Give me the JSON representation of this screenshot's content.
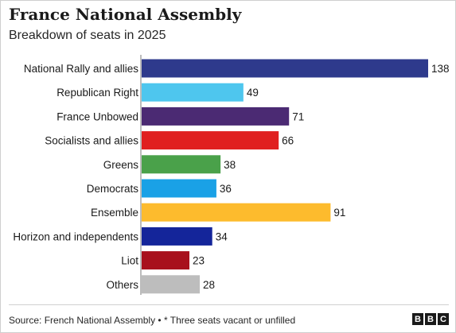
{
  "title": "France National Assembly",
  "subtitle": "Breakdown of seats in 2025",
  "source": "Source: French National Assembly • * Three seats vacant or unfilled",
  "logo": [
    "B",
    "B",
    "C"
  ],
  "chart_data": {
    "type": "bar",
    "orientation": "horizontal",
    "title": "France National Assembly",
    "subtitle": "Breakdown of seats in 2025",
    "xlabel": "",
    "ylabel": "",
    "grid": false,
    "xlim": [
      0,
      138
    ],
    "categories": [
      "National Rally and allies",
      "Republican Right",
      "France Unbowed",
      "Socialists and allies",
      "Greens",
      "Democrats",
      "Ensemble",
      "Horizon and independents",
      "Liot",
      "Others"
    ],
    "values": [
      138,
      49,
      71,
      66,
      38,
      36,
      91,
      34,
      23,
      28
    ],
    "colors": [
      "#2e3a8c",
      "#4ec6ee",
      "#4b2a73",
      "#e02020",
      "#4aa14a",
      "#1aa1e6",
      "#fdbb2d",
      "#14259a",
      "#a8101c",
      "#bdbdbd"
    ]
  }
}
